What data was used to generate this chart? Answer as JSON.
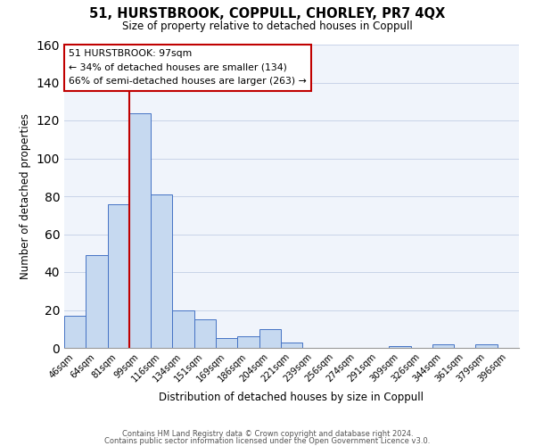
{
  "title": "51, HURSTBROOK, COPPULL, CHORLEY, PR7 4QX",
  "subtitle": "Size of property relative to detached houses in Coppull",
  "xlabel": "Distribution of detached houses by size in Coppull",
  "ylabel": "Number of detached properties",
  "bar_labels": [
    "46sqm",
    "64sqm",
    "81sqm",
    "99sqm",
    "116sqm",
    "134sqm",
    "151sqm",
    "169sqm",
    "186sqm",
    "204sqm",
    "221sqm",
    "239sqm",
    "256sqm",
    "274sqm",
    "291sqm",
    "309sqm",
    "326sqm",
    "344sqm",
    "361sqm",
    "379sqm",
    "396sqm"
  ],
  "bar_values": [
    17,
    49,
    76,
    124,
    81,
    20,
    15,
    5,
    6,
    10,
    3,
    0,
    0,
    0,
    0,
    1,
    0,
    2,
    0,
    2,
    0
  ],
  "bar_color": "#c6d9f0",
  "bar_edge_color": "#4472c4",
  "vline_color": "#c00000",
  "annotation_title": "51 HURSTBROOK: 97sqm",
  "annotation_line1": "← 34% of detached houses are smaller (134)",
  "annotation_line2": "66% of semi-detached houses are larger (263) →",
  "annotation_box_color": "#ffffff",
  "annotation_box_edge": "#c00000",
  "ylim": [
    0,
    160
  ],
  "yticks": [
    0,
    20,
    40,
    60,
    80,
    100,
    120,
    140,
    160
  ],
  "footnote1": "Contains HM Land Registry data © Crown copyright and database right 2024.",
  "footnote2": "Contains public sector information licensed under the Open Government Licence v3.0."
}
